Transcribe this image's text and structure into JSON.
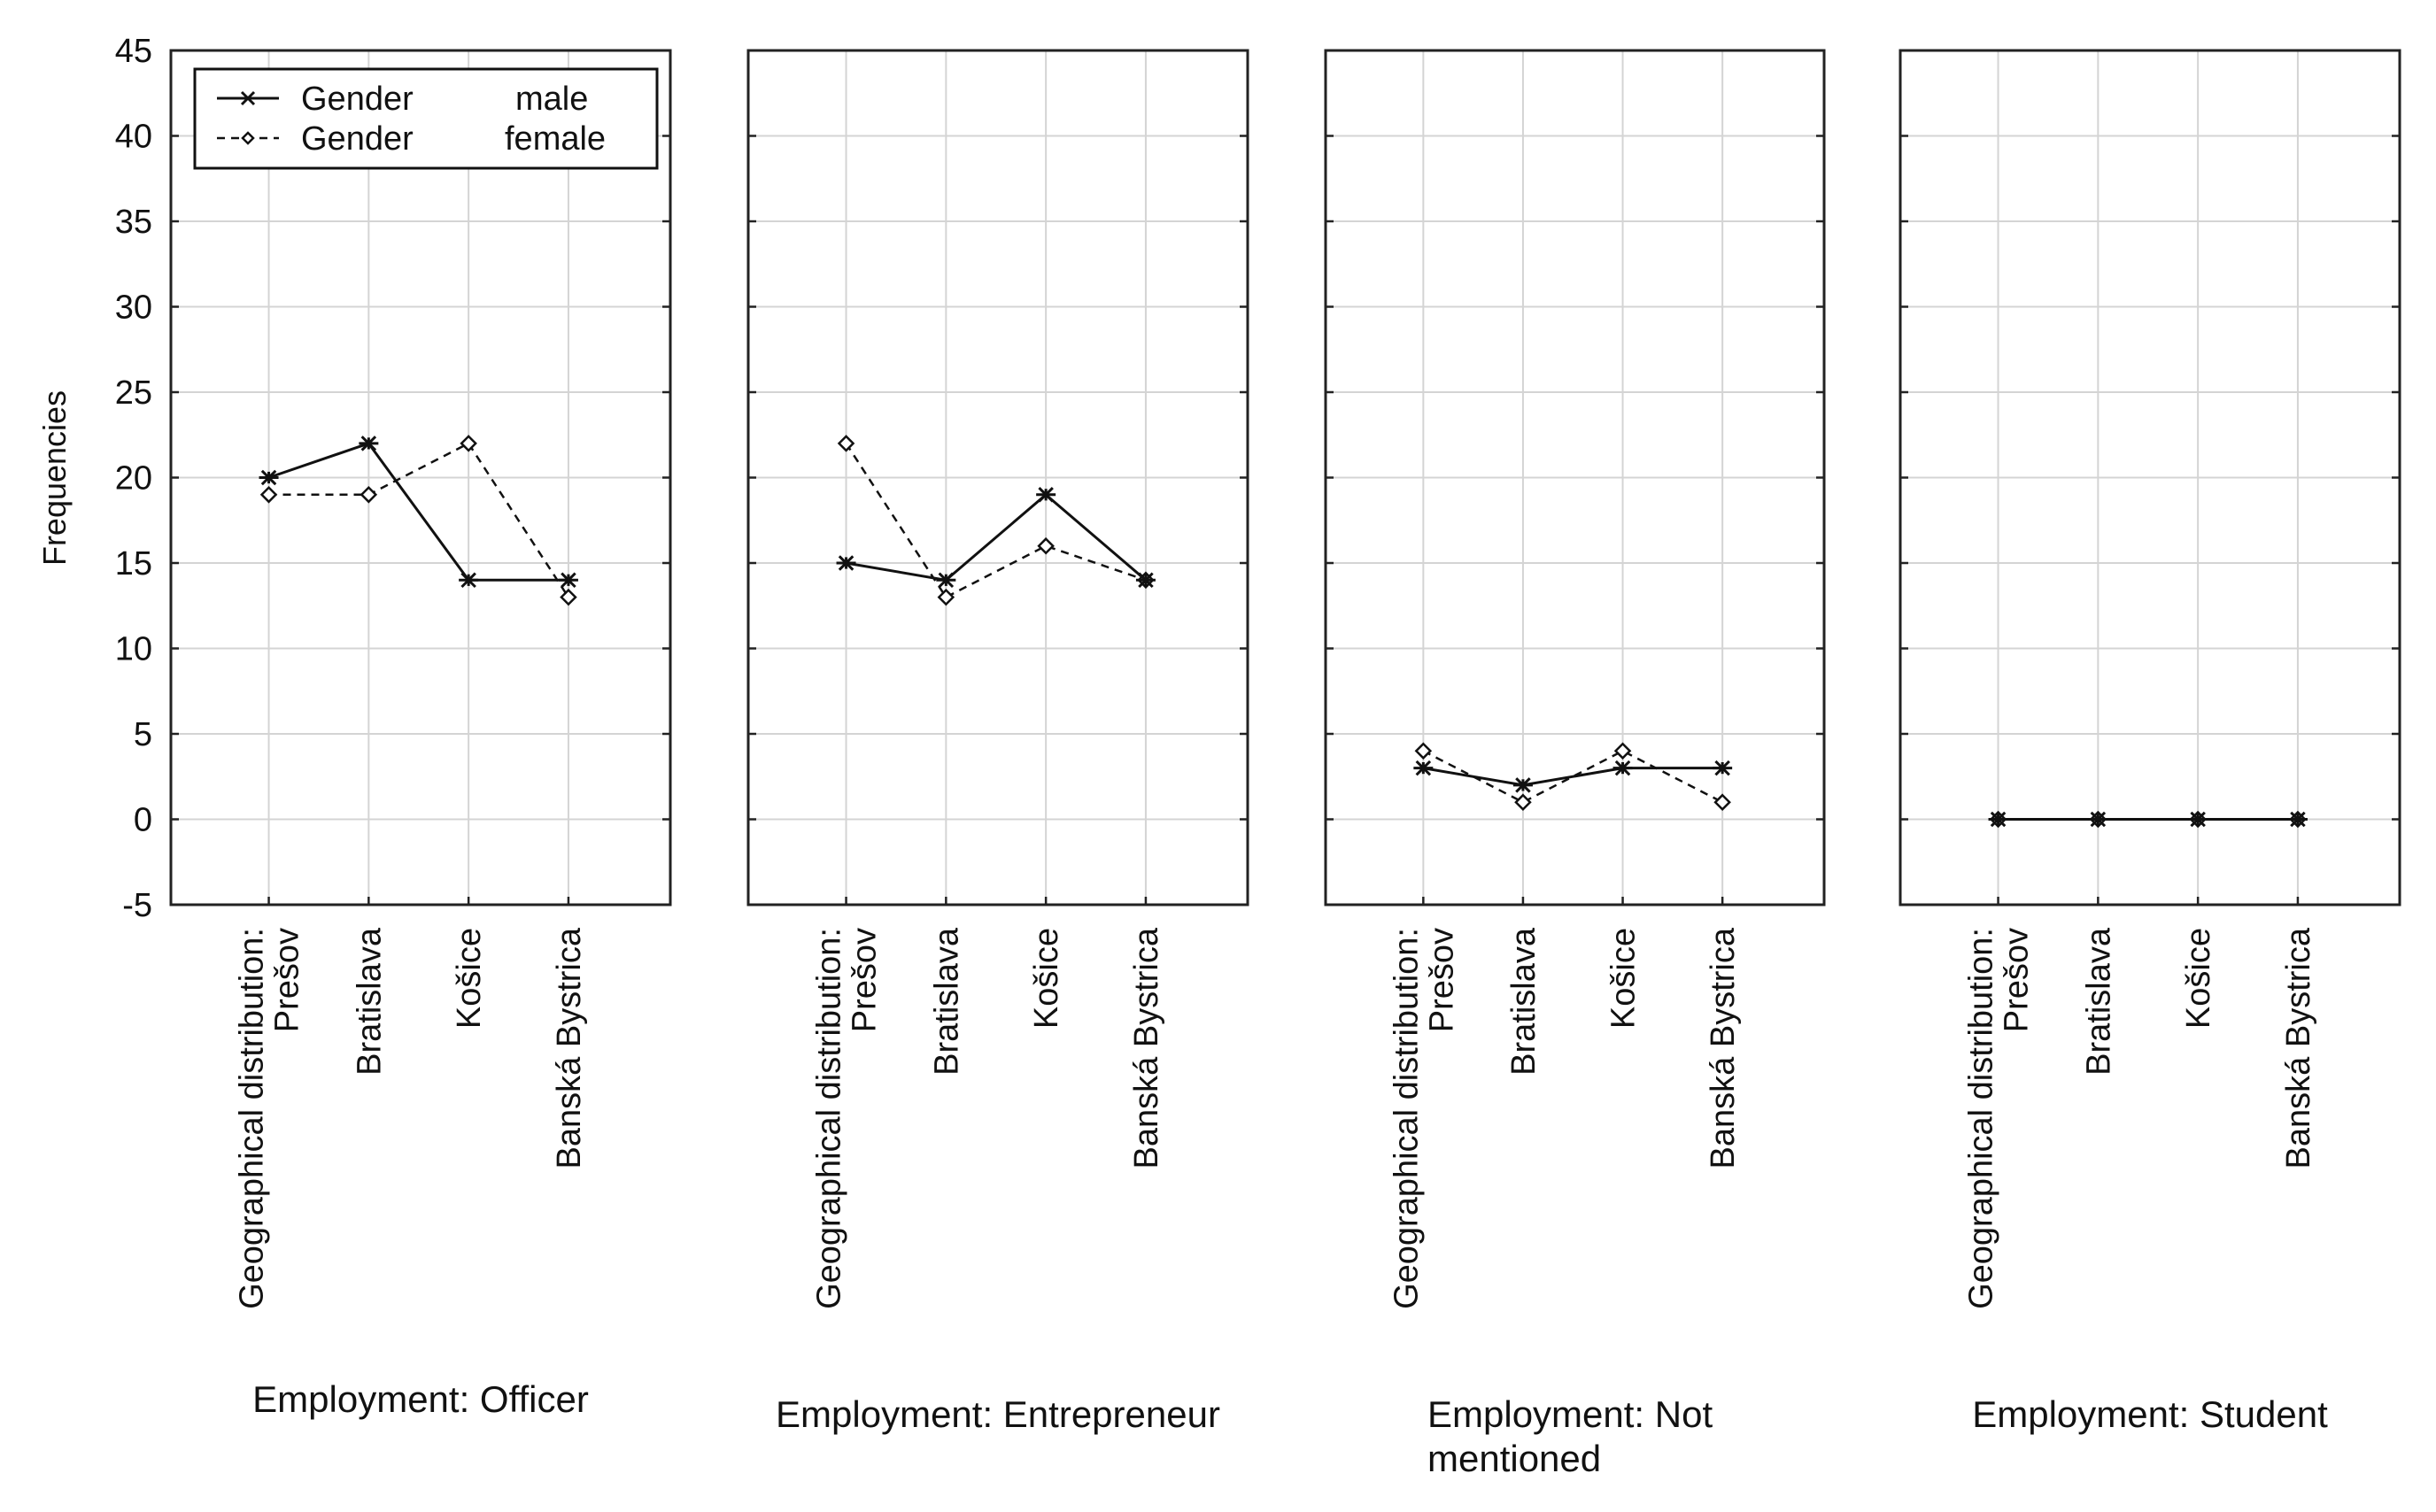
{
  "chart_data": {
    "type": "line",
    "ylabel": "Frequencies",
    "ylim": [
      -5,
      45
    ],
    "yticks": [
      "45",
      "40",
      "35",
      "30",
      "25",
      "20",
      "15",
      "10",
      "5",
      "0",
      "-5"
    ],
    "ytick_values": [
      45,
      40,
      35,
      30,
      25,
      20,
      15,
      10,
      5,
      0,
      -5
    ],
    "grid": true,
    "legend": {
      "placement": "top-left",
      "entries": [
        {
          "series": "male",
          "label": "Gender",
          "value": "male",
          "style": "solid",
          "marker": "asterisk"
        },
        {
          "series": "female",
          "label": "Gender",
          "value": "female",
          "style": "dashed",
          "marker": "diamond"
        }
      ]
    },
    "categories": [
      "Geographical distribution:\nPrešov",
      "Bratislava",
      "Košice",
      "Banská Bystrica"
    ],
    "panels": [
      {
        "title": "Employment: Officer",
        "series": [
          {
            "name": "male",
            "values": [
              20,
              22,
              14,
              14
            ]
          },
          {
            "name": "female",
            "values": [
              19,
              19,
              22,
              13
            ]
          }
        ]
      },
      {
        "title": "Employment: Entrepreneur",
        "series": [
          {
            "name": "male",
            "values": [
              15,
              14,
              19,
              14
            ]
          },
          {
            "name": "female",
            "values": [
              22,
              13,
              16,
              14
            ]
          }
        ]
      },
      {
        "title": "Employment: Not\nmentioned",
        "series": [
          {
            "name": "male",
            "values": [
              3,
              2,
              3,
              3
            ]
          },
          {
            "name": "female",
            "values": [
              4,
              1,
              4,
              1
            ]
          }
        ]
      },
      {
        "title": "Employment: Student",
        "series": [
          {
            "name": "male",
            "values": [
              0,
              0,
              0,
              0
            ]
          },
          {
            "name": "female",
            "values": [
              0,
              0,
              0,
              0
            ]
          }
        ]
      }
    ]
  }
}
